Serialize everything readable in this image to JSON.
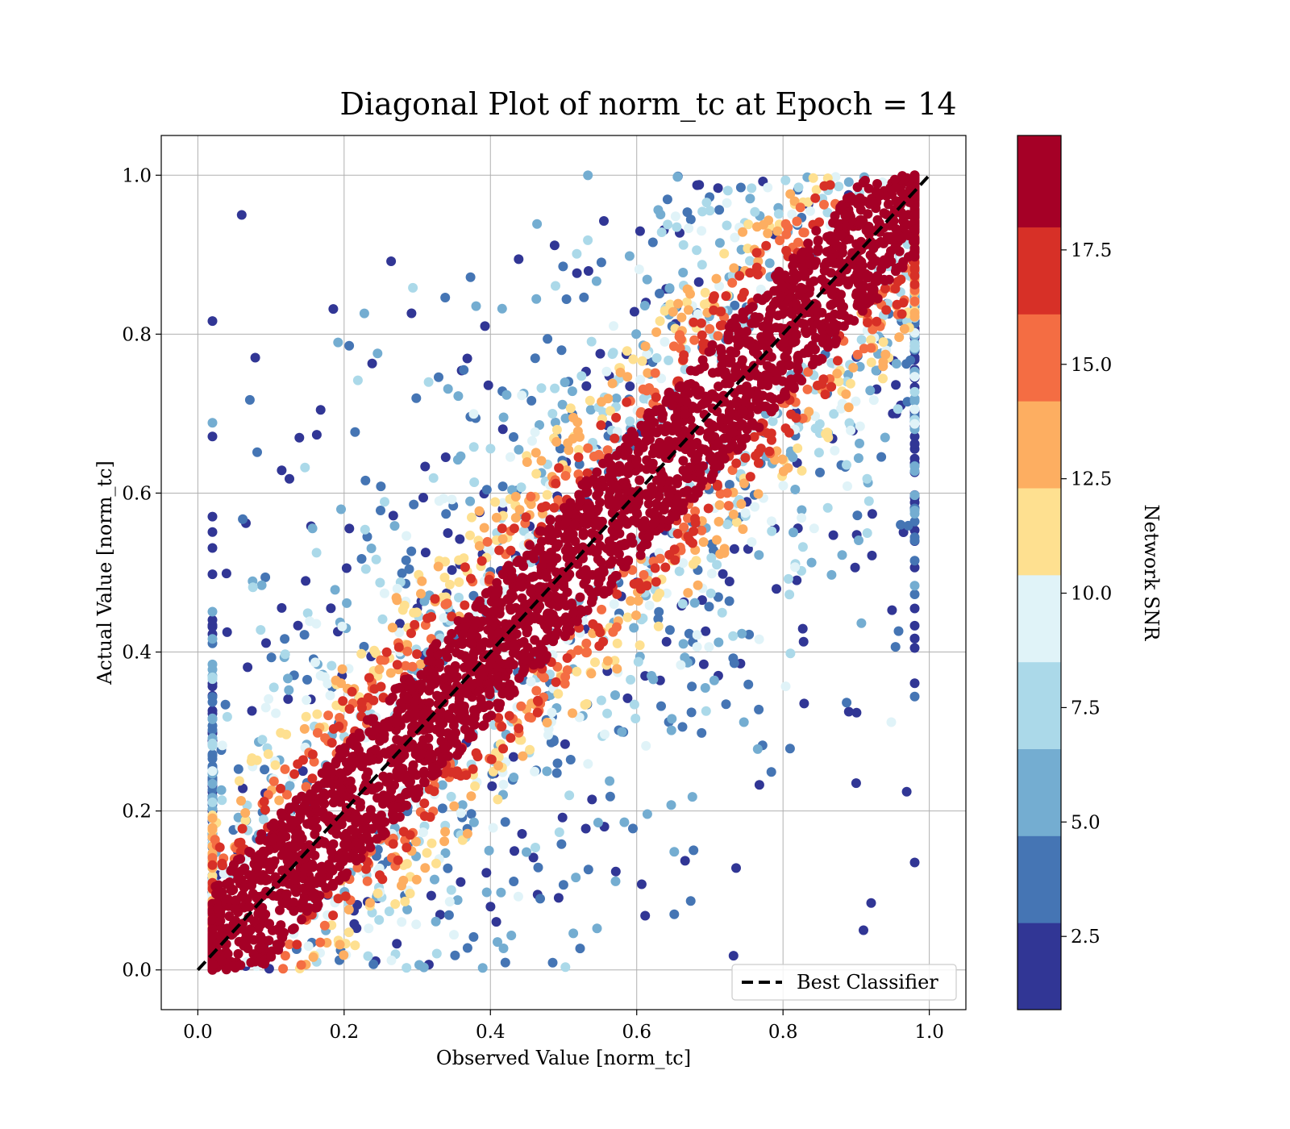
{
  "chart_data": {
    "type": "scatter",
    "title": "Diagonal Plot of norm_tc at Epoch = 14",
    "xlabel": "Observed Value [norm_tc]",
    "ylabel": "Actual Value [norm_tc]",
    "xlim": [
      -0.05,
      1.05
    ],
    "ylim": [
      -0.05,
      1.05
    ],
    "xticks": [
      "0.0",
      "0.2",
      "0.4",
      "0.6",
      "0.8",
      "1.0"
    ],
    "yticks": [
      "0.0",
      "0.2",
      "0.4",
      "0.6",
      "0.8",
      "1.0"
    ],
    "grid": true,
    "reference_line": {
      "label": "Best Classifier",
      "x": [
        0,
        1
      ],
      "y": [
        0,
        1
      ],
      "style": "dashed",
      "color": "#000000"
    },
    "legend": {
      "placement": "lower-right",
      "entries": [
        "Best Classifier"
      ]
    },
    "colorbar": {
      "label": "Network SNR",
      "range": [
        0.9,
        20.0
      ],
      "ticks": [
        "2.5",
        "5.0",
        "7.5",
        "10.0",
        "12.5",
        "15.0",
        "17.5"
      ],
      "levels": [
        {
          "from": 0.9,
          "to": 2.8,
          "color": "#313695"
        },
        {
          "from": 2.8,
          "to": 4.7,
          "color": "#4575b4"
        },
        {
          "from": 4.7,
          "to": 6.6,
          "color": "#74add1"
        },
        {
          "from": 6.6,
          "to": 8.5,
          "color": "#abd9e9"
        },
        {
          "from": 8.5,
          "to": 10.4,
          "color": "#e0f3f8"
        },
        {
          "from": 10.4,
          "to": 12.3,
          "color": "#fee090"
        },
        {
          "from": 12.3,
          "to": 14.2,
          "color": "#fdae61"
        },
        {
          "from": 14.2,
          "to": 16.1,
          "color": "#f46d43"
        },
        {
          "from": 16.1,
          "to": 18.0,
          "color": "#d73027"
        },
        {
          "from": 18.0,
          "to": 20.0,
          "color": "#a50026"
        }
      ]
    },
    "scatter_summary": {
      "high_snr_band_halfwidth": 0.085,
      "mid_snr_band_halfwidth": 0.13,
      "low_snr_spread": 0.45,
      "outlier_points": [
        [
          0.06,
          0.95
        ],
        [
          0.04,
          0.425
        ],
        [
          0.95,
          0.7
        ],
        [
          0.9,
          0.235
        ],
        [
          0.91,
          0.05
        ],
        [
          0.89,
          0.325
        ]
      ]
    }
  }
}
